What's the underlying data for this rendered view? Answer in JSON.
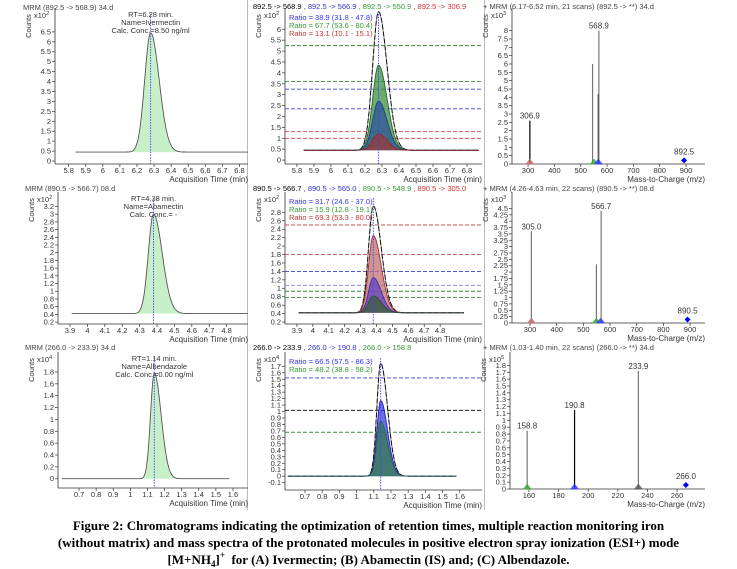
{
  "caption": {
    "line1": "Figure 2: Chromatograms indicating the optimization of retention times, multiple reaction monitoring iron",
    "line2": "(without matrix) and mass spectra of the protonated molecules in positive electron spray ionization (ESI+) mode",
    "line3_pre": "[M+NH",
    "line3_sub": "4",
    "line3_close": "]",
    "line3_sup": "+",
    "line3_post": "  for (A) Ivermectin; (B) Abamectin (IS) and; (C) Albendazole."
  },
  "chart_data": [
    {
      "type": "line",
      "kind": "chromatogram",
      "title": "MRM (892.5 -> 568.9) 34.d",
      "ylabel": "Counts",
      "multiplier": "x10",
      "exponent": "2",
      "xlabel": "Acquisition Time (min)",
      "xlim": [
        5.72,
        6.85
      ],
      "ylim": [
        -0.15,
        7.4
      ],
      "xticks": [
        5.8,
        5.9,
        6,
        6.1,
        6.2,
        6.3,
        6.4,
        6.5,
        6.6,
        6.7,
        6.8
      ],
      "yticks": [
        0,
        0.5,
        1,
        1.5,
        2,
        2.5,
        3,
        3.5,
        4,
        4.5,
        5,
        5.5,
        6,
        6.5
      ],
      "rt": 6.28,
      "annotations": [
        "RT=6.28 min.",
        "Name=Ivermectin",
        "Calc. Conc.=8.50 ng/ml"
      ],
      "series": [
        {
          "name": "892.5 -> 568.9",
          "rt": 6.28,
          "height": 6.0,
          "baseline": 0.45,
          "sigma_left": 0.035,
          "sigma_right": 0.05,
          "start": 5.84,
          "end": 6.85,
          "color": "#555555",
          "fill": "#c8f0c8",
          "opacity": 1
        }
      ]
    },
    {
      "type": "line",
      "kind": "ratio",
      "header": [
        {
          "label": "892.5 -> 568.9",
          "color": "#000000"
        },
        {
          "label": " , 892.5 -> 566.9",
          "color": "#3333cc"
        },
        {
          "label": " , 892.5 -> 550.9",
          "color": "#339933"
        },
        {
          "label": " , 892.5 -> 306.9",
          "color": "#cc3333"
        }
      ],
      "ylabel": "Counts",
      "multiplier": "x10",
      "exponent": "2",
      "xlabel": "Acquisition Time (min)",
      "xlim": [
        5.73,
        6.888
      ],
      "ylim": [
        -0.18,
        6.7
      ],
      "xticks": [
        5.8,
        5.9,
        6,
        6.1,
        6.2,
        6.3,
        6.4,
        6.5,
        6.6,
        6.7,
        6.8
      ],
      "yticks": [
        0,
        0.5,
        1,
        1.5,
        2,
        2.5,
        3,
        3.5,
        4,
        4.5,
        5,
        5.5,
        6
      ],
      "rt": 6.28,
      "ratios": [
        {
          "text": "Ratio = 38.9 (31.8 - 47.8)",
          "color": "#3333ff"
        },
        {
          "text": "Ratio = 67.7 (53.6 - 80.4)",
          "color": "#339933"
        },
        {
          "text": "Ratio = 13.1 (10.1 - 15.1)",
          "color": "#cc3333"
        }
      ],
      "ratio_lines": [
        {
          "value": 5.25,
          "color": "#3a8a3a"
        },
        {
          "value": 3.6,
          "color": "#3a8a3a"
        },
        {
          "value": 3.25,
          "color": "#4040d0"
        },
        {
          "value": 2.35,
          "color": "#4040d0"
        },
        {
          "value": 1.3,
          "color": "#c04040"
        },
        {
          "value": 1.0,
          "color": "#c04040"
        }
      ],
      "series": [
        {
          "name": "892.5 -> 568.9",
          "rt": 6.28,
          "height": 6.35,
          "baseline": 0.45,
          "sigma_left": 0.035,
          "sigma_right": 0.05,
          "start": 5.84,
          "end": 6.87,
          "color": "#111111",
          "fill": "none",
          "opacity": 1,
          "dashed": true
        },
        {
          "name": "892.5 -> 550.9",
          "rt": 6.28,
          "height": 3.9,
          "baseline": 0.45,
          "sigma_left": 0.035,
          "sigma_right": 0.05,
          "start": 5.84,
          "end": 6.87,
          "color": "#1f6b1f",
          "fill": "#3d8f3d",
          "opacity": 0.75
        },
        {
          "name": "892.5 -> 566.9",
          "rt": 6.28,
          "height": 2.25,
          "baseline": 0.45,
          "sigma_left": 0.035,
          "sigma_right": 0.05,
          "start": 5.84,
          "end": 6.87,
          "color": "#1f3f8f",
          "fill": "#2a4f98",
          "opacity": 0.7
        },
        {
          "name": "892.5 -> 306.9",
          "rt": 6.28,
          "height": 0.75,
          "baseline": 0.45,
          "sigma_left": 0.035,
          "sigma_right": 0.05,
          "start": 5.84,
          "end": 6.87,
          "color": "#8c2a2a",
          "fill": "#9c3a3a",
          "opacity": 0.75
        }
      ]
    },
    {
      "type": "bar",
      "kind": "spectrum",
      "title": "+ MRM (6.17-6.52 min, 21 scans) (892.5 -> **) 34.d",
      "ylabel": "Counts",
      "multiplier": "x10",
      "exponent": "3",
      "xlabel": "Mass-to-Charge (m/z)",
      "xlim": [
        239,
        972
      ],
      "ylim": [
        0,
        9.0
      ],
      "xticks": [
        300,
        400,
        500,
        600,
        700,
        800,
        900
      ],
      "yticks": [
        0,
        0.5,
        1,
        1.5,
        2,
        2.5,
        3,
        3.5,
        4,
        4.5,
        5,
        5.5,
        6,
        6.5,
        7,
        7.5,
        8
      ],
      "sticks": [
        {
          "mz": 306.9,
          "value": 2.6,
          "color": "#000000",
          "label": "306.9"
        },
        {
          "mz": 545.0,
          "value": 6.0,
          "color": "#777777"
        },
        {
          "mz": 566.9,
          "value": 4.2,
          "color": "#000000"
        },
        {
          "mz": 568.9,
          "value": 8.0,
          "color": "#777777",
          "label": "568.9"
        }
      ],
      "precursor": {
        "mz": 892.5,
        "value": 0.1,
        "label": "892.5",
        "color": "#0000ff"
      },
      "markers": [
        {
          "mz": 306.9,
          "color": "#cc6666"
        },
        {
          "mz": 550.9,
          "color": "#33aa33"
        },
        {
          "mz": 566.9,
          "color": "#3333ff"
        }
      ]
    },
    {
      "type": "line",
      "kind": "chromatogram",
      "title": "MRM (890.5 -> 566.7) 08.d",
      "ylabel": "Counts",
      "multiplier": "x10",
      "exponent": "2",
      "xlabel": "Acquisition Time (min)",
      "xlim": [
        3.831,
        4.923
      ],
      "ylim": [
        0.15,
        3.42
      ],
      "xticks": [
        3.9,
        4,
        4.1,
        4.2,
        4.3,
        4.4,
        4.5,
        4.6,
        4.7,
        4.8
      ],
      "yticks": [
        0.2,
        0.4,
        0.6,
        0.8,
        1,
        1.2,
        1.4,
        1.6,
        1.8,
        2,
        2.2,
        2.4,
        2.6,
        2.8,
        3,
        3.2
      ],
      "rt": 4.38,
      "annotations": [
        "RT=4.38 min.",
        "Name=Abamectin",
        "Calc. Conc.= -"
      ],
      "series": [
        {
          "name": "890.5 -> 566.7",
          "rt": 4.38,
          "height": 2.58,
          "baseline": 0.42,
          "sigma_left": 0.03,
          "sigma_right": 0.05,
          "start": 3.91,
          "end": 4.923,
          "color": "#555555",
          "fill": "#c8f0c8",
          "opacity": 1
        }
      ]
    },
    {
      "type": "line",
      "kind": "ratio",
      "header": [
        {
          "label": "890.5 -> 566.7",
          "color": "#000000"
        },
        {
          "label": " , 890.5 -> 565.0",
          "color": "#3333cc"
        },
        {
          "label": " , 890.5 -> 548.9",
          "color": "#339933"
        },
        {
          "label": " , 890.5 -> 305.0",
          "color": "#cc3333"
        }
      ],
      "ylabel": "Counts",
      "multiplier": "x10",
      "exponent": "2",
      "xlabel": "Acquisition Time (min)",
      "xlim": [
        3.825,
        5.063
      ],
      "ylim": [
        0.154,
        3.14
      ],
      "xticks": [
        3.9,
        4,
        4.1,
        4.2,
        4.3,
        4.4,
        4.5,
        4.6,
        4.7,
        4.8
      ],
      "yticks": [
        0.2,
        0.4,
        0.6,
        0.8,
        1,
        1.2,
        1.4,
        1.6,
        1.8,
        2,
        2.2,
        2.4,
        2.6,
        2.8
      ],
      "rt": 4.38,
      "ratios": [
        {
          "text": "Ratio = 31.7 (24.6 - 37.0)",
          "color": "#3333ff"
        },
        {
          "text": "Ratio = 15.9 (12.8 - 19.1)",
          "color": "#339933"
        },
        {
          "text": "Ratio = 69.3 (53.3 - 80.0)",
          "color": "#cc3333"
        }
      ],
      "ratio_lines": [
        {
          "value": 2.5,
          "color": "#c05050"
        },
        {
          "value": 1.8,
          "color": "#c05050"
        },
        {
          "value": 1.4,
          "color": "#4040d0"
        },
        {
          "value": 1.07,
          "color": "#8080e0"
        },
        {
          "value": 0.93,
          "color": "#3a8a3a"
        },
        {
          "value": 0.78,
          "color": "#3a8a3a"
        }
      ],
      "series": [
        {
          "name": "890.5 -> 566.7",
          "rt": 4.38,
          "height": 2.53,
          "baseline": 0.42,
          "sigma_left": 0.03,
          "sigma_right": 0.05,
          "start": 3.91,
          "end": 4.95,
          "color": "#111111",
          "fill": "none",
          "opacity": 1,
          "dashed": true
        },
        {
          "name": "890.5 -> 305.0",
          "rt": 4.38,
          "height": 1.83,
          "baseline": 0.42,
          "sigma_left": 0.03,
          "sigma_right": 0.05,
          "start": 3.91,
          "end": 4.95,
          "color": "#a03030",
          "fill": "#c07070",
          "opacity": 0.75
        },
        {
          "name": "890.5 -> 565.0",
          "rt": 4.38,
          "height": 0.83,
          "baseline": 0.42,
          "sigma_left": 0.03,
          "sigma_right": 0.05,
          "start": 3.91,
          "end": 4.95,
          "color": "#4030a0",
          "fill": "#6040c0",
          "opacity": 0.7
        },
        {
          "name": "890.5 -> 548.9",
          "rt": 4.38,
          "height": 0.4,
          "baseline": 0.42,
          "sigma_left": 0.03,
          "sigma_right": 0.05,
          "start": 3.91,
          "end": 4.95,
          "color": "#2e4e2e",
          "fill": "#3e5e3e",
          "opacity": 0.8
        }
      ]
    },
    {
      "type": "bar",
      "kind": "spectrum",
      "title": "+ MRM (4.26-4.63 min, 22 scans) (890.5 -> **) 08.d",
      "ylabel": "Counts",
      "multiplier": "x10",
      "exponent": "3",
      "xlabel": "Mass-to-Charge (m/z)",
      "xlim": [
        232.5,
        956
      ],
      "ylim": [
        0,
        4.91
      ],
      "xticks": [
        300,
        400,
        500,
        600,
        700,
        800,
        900
      ],
      "yticks": [
        0,
        0.25,
        0.5,
        0.75,
        1,
        1.25,
        1.5,
        1.75,
        2,
        2.25,
        2.5,
        2.75,
        3,
        3.25,
        3.5,
        3.75,
        4,
        4.25,
        4.5
      ],
      "sticks": [
        {
          "mz": 305.0,
          "value": 3.6,
          "color": "#777777",
          "label": "305.0"
        },
        {
          "mz": 548.9,
          "value": 2.3,
          "color": "#777777"
        },
        {
          "mz": 566.7,
          "value": 4.4,
          "color": "#777777",
          "label": "566.7"
        }
      ],
      "precursor": {
        "mz": 890.5,
        "value": 0.06,
        "label": "890.5",
        "color": "#0000ff"
      },
      "markers": [
        {
          "mz": 305.0,
          "color": "#cc6666"
        },
        {
          "mz": 548.9,
          "color": "#33aa33"
        },
        {
          "mz": 565.0,
          "color": "#3333ff"
        }
      ]
    },
    {
      "type": "line",
      "kind": "chromatogram",
      "title": "MRM (266.0 -> 233.9) 34.d",
      "ylabel": "Counts",
      "multiplier": "x10",
      "exponent": "4",
      "xlabel": "Acquisition Time (min)",
      "xlim": [
        0.577,
        1.688
      ],
      "ylim": [
        -0.156,
        2.035
      ],
      "xticks": [
        0.7,
        0.8,
        0.9,
        1,
        1.1,
        1.2,
        1.3,
        1.4,
        1.5,
        1.6
      ],
      "yticks": [
        0,
        0.2,
        0.4,
        0.6,
        0.8,
        1,
        1.2,
        1.4,
        1.6,
        1.8
      ],
      "rt": 1.14,
      "annotations": [
        "RT=1.14 min.",
        "Name=Albendazole",
        "Calc. Conc.=0.00 ng/ml"
      ],
      "series": [
        {
          "name": "266.0 -> 233.9",
          "rt": 1.14,
          "height": 1.78,
          "baseline": 0.0,
          "sigma_left": 0.022,
          "sigma_right": 0.04,
          "start": 0.6,
          "end": 1.58,
          "color": "#555555",
          "fill": "#c8f0c8",
          "opacity": 1
        }
      ]
    },
    {
      "type": "line",
      "kind": "ratio",
      "header": [
        {
          "label": "266.0 -> 233.9",
          "color": "#000000"
        },
        {
          "label": " , 266.0 -> 190.8",
          "color": "#3333cc"
        },
        {
          "label": " , 266.0 -> 158.8",
          "color": "#339933"
        }
      ],
      "ylabel": "Counts",
      "multiplier": "x10",
      "exponent": "4",
      "xlabel": "Acquisition Time (min)",
      "xlim": [
        0.584,
        1.729
      ],
      "ylim": [
        -0.214,
        1.829
      ],
      "xticks": [
        0.7,
        0.8,
        0.9,
        1,
        1.1,
        1.2,
        1.3,
        1.4,
        1.5,
        1.6
      ],
      "yticks": [
        -0.1,
        0,
        0.1,
        0.2,
        0.3,
        0.4,
        0.5,
        0.6,
        0.7,
        0.8,
        0.9,
        1,
        1.1,
        1.2,
        1.3,
        1.4,
        1.5,
        1.6,
        1.7
      ],
      "rt": 1.14,
      "ratios": [
        {
          "text": "Ratio = 66.5 (57.5 - 86.3)",
          "color": "#3333ff"
        },
        {
          "text": "Ratio = 48.2 (38.8 - 58.2)",
          "color": "#339933"
        }
      ],
      "ratio_lines": [
        {
          "value": 1.52,
          "color": "#4040d0"
        },
        {
          "value": 1.02,
          "color": "#000000"
        },
        {
          "value": 0.68,
          "color": "#3a8a3a"
        }
      ],
      "series": [
        {
          "name": "266.0 -> 233.9",
          "rt": 1.14,
          "height": 1.75,
          "baseline": 0.0,
          "sigma_left": 0.022,
          "sigma_right": 0.04,
          "start": 0.6,
          "end": 1.58,
          "color": "#111111",
          "fill": "none",
          "opacity": 1,
          "dashed": true
        },
        {
          "name": "266.0 -> 190.8",
          "rt": 1.14,
          "height": 1.17,
          "baseline": 0.0,
          "sigma_left": 0.022,
          "sigma_right": 0.04,
          "start": 0.6,
          "end": 1.58,
          "color": "#2020c0",
          "fill": "#3030e0",
          "opacity": 0.7
        },
        {
          "name": "266.0 -> 158.8",
          "rt": 1.14,
          "height": 0.85,
          "baseline": 0.0,
          "sigma_left": 0.022,
          "sigma_right": 0.04,
          "start": 0.6,
          "end": 1.58,
          "color": "#2a6a4a",
          "fill": "#3a7a5a",
          "opacity": 0.85
        }
      ]
    },
    {
      "type": "bar",
      "kind": "spectrum",
      "title": "+ MRM (1.03-1.40 min, 22 scans) (266.0 -> **) 34.d",
      "ylabel": "Counts",
      "multiplier": "x10",
      "exponent": "5",
      "xlabel": "Mass-to-Charge (m/z)",
      "xlim": [
        147.2,
        278.9
      ],
      "ylim": [
        0,
        1.908
      ],
      "xticks": [
        160,
        180,
        200,
        220,
        240,
        260
      ],
      "yticks": [
        0,
        0.1,
        0.2,
        0.3,
        0.4,
        0.5,
        0.6,
        0.7,
        0.8,
        0.9,
        1,
        1.1,
        1.2,
        1.3,
        1.4,
        1.5,
        1.6,
        1.7,
        1.8
      ],
      "sticks": [
        {
          "mz": 158.8,
          "value": 0.85,
          "color": "#777777",
          "label": "158.8"
        },
        {
          "mz": 190.8,
          "value": 1.15,
          "color": "#000000",
          "label": "190.8"
        },
        {
          "mz": 233.9,
          "value": 1.72,
          "color": "#777777",
          "label": "233.9"
        }
      ],
      "precursor": {
        "mz": 266.0,
        "value": 0.03,
        "label": "266.0",
        "color": "#0000ff"
      },
      "markers": [
        {
          "mz": 158.8,
          "color": "#33aa33"
        },
        {
          "mz": 190.8,
          "color": "#3333ff"
        },
        {
          "mz": 233.9,
          "color": "#555555"
        }
      ]
    }
  ]
}
